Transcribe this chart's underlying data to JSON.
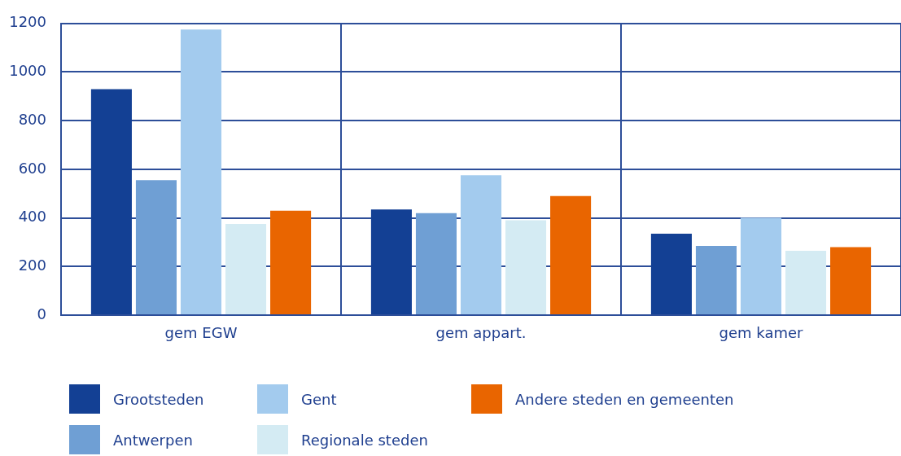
{
  "chart_data": {
    "type": "bar",
    "categories": [
      "gem EGW",
      "gem appart.",
      "gem kamer"
    ],
    "series": [
      {
        "name": "Grootsteden",
        "color": "#134094",
        "values": [
          930,
          435,
          335
        ]
      },
      {
        "name": "Antwerpen",
        "color": "#6f9fd4",
        "values": [
          555,
          420,
          285
        ]
      },
      {
        "name": "Gent",
        "color": "#a3cbee",
        "values": [
          1175,
          575,
          400
        ]
      },
      {
        "name": "Regionale steden",
        "color": "#d4ebf3",
        "values": [
          375,
          390,
          265
        ]
      },
      {
        "name": "Andere steden en gemeenten",
        "color": "#e96500",
        "values": [
          430,
          490,
          280
        ]
      }
    ],
    "ylim": [
      0,
      1200
    ],
    "yticks": [
      0,
      200,
      400,
      600,
      800,
      1000,
      1200
    ],
    "grid": true,
    "legend": "bottom"
  }
}
